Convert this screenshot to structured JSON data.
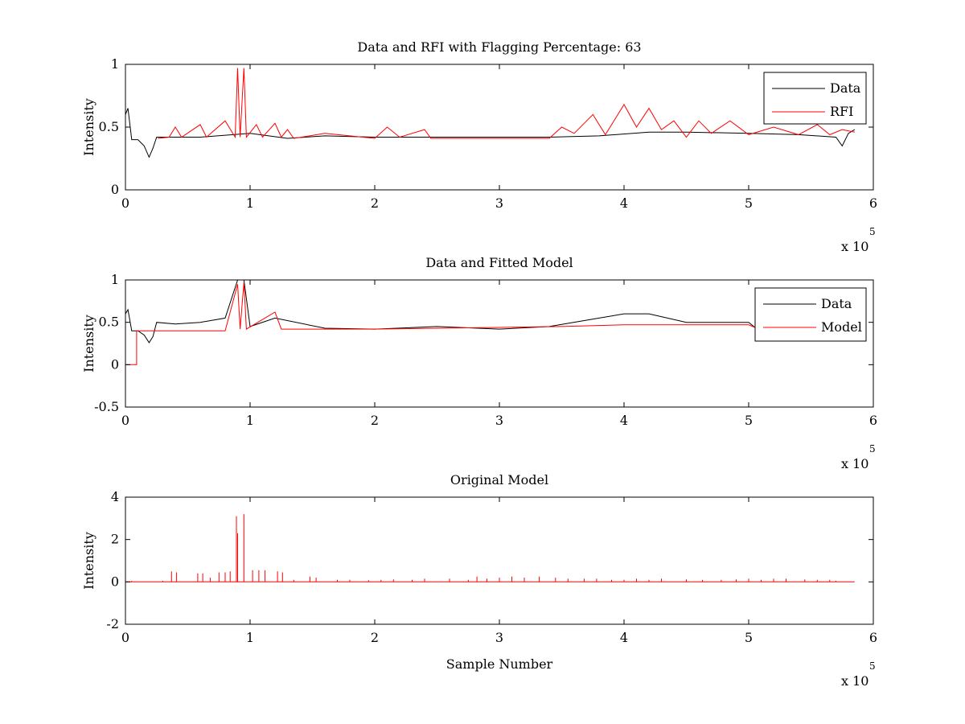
{
  "chart_data": [
    {
      "type": "line",
      "title": "Data and RFI with Flagging Percentage: 63",
      "xlabel": "",
      "ylabel": "Intensity",
      "xlim": [
        0,
        600000
      ],
      "ylim": [
        0,
        1
      ],
      "xticks": [
        0,
        1,
        2,
        3,
        4,
        5,
        6
      ],
      "yticks": [
        0,
        0.5,
        1
      ],
      "x_multiplier": "x 10",
      "x_multiplier_exp": "5",
      "legend": "top-right",
      "series": [
        {
          "name": "Data",
          "color": "#000000",
          "points": [
            [
              0,
              0.6
            ],
            [
              2000,
              0.65
            ],
            [
              5000,
              0.4
            ],
            [
              10000,
              0.4
            ],
            [
              15000,
              0.35
            ],
            [
              19000,
              0.26
            ],
            [
              22000,
              0.33
            ],
            [
              25000,
              0.42
            ],
            [
              60000,
              0.42
            ],
            [
              100000,
              0.45
            ],
            [
              130000,
              0.41
            ],
            [
              160000,
              0.43
            ],
            [
              200000,
              0.42
            ],
            [
              250000,
              0.42
            ],
            [
              300000,
              0.42
            ],
            [
              340000,
              0.42
            ],
            [
              380000,
              0.43
            ],
            [
              420000,
              0.46
            ],
            [
              450000,
              0.46
            ],
            [
              500000,
              0.45
            ],
            [
              540000,
              0.44
            ],
            [
              570000,
              0.42
            ],
            [
              575000,
              0.35
            ],
            [
              580000,
              0.45
            ],
            [
              585000,
              0.48
            ]
          ]
        },
        {
          "name": "RFI",
          "color": "#ff0000",
          "points": [
            [
              26000,
              0.41
            ],
            [
              35000,
              0.42
            ],
            [
              40000,
              0.5
            ],
            [
              45000,
              0.42
            ],
            [
              60000,
              0.52
            ],
            [
              65000,
              0.42
            ],
            [
              80000,
              0.55
            ],
            [
              88000,
              0.42
            ],
            [
              90000,
              0.97
            ],
            [
              92000,
              0.42
            ],
            [
              95000,
              0.97
            ],
            [
              97000,
              0.42
            ],
            [
              105000,
              0.52
            ],
            [
              110000,
              0.42
            ],
            [
              120000,
              0.53
            ],
            [
              125000,
              0.42
            ],
            [
              130000,
              0.48
            ],
            [
              135000,
              0.41
            ],
            [
              160000,
              0.45
            ],
            [
              200000,
              0.41
            ],
            [
              210000,
              0.5
            ],
            [
              220000,
              0.42
            ],
            [
              240000,
              0.48
            ],
            [
              245000,
              0.41
            ],
            [
              340000,
              0.41
            ],
            [
              350000,
              0.5
            ],
            [
              360000,
              0.45
            ],
            [
              375000,
              0.6
            ],
            [
              385000,
              0.44
            ],
            [
              400000,
              0.68
            ],
            [
              410000,
              0.5
            ],
            [
              420000,
              0.65
            ],
            [
              430000,
              0.48
            ],
            [
              440000,
              0.55
            ],
            [
              450000,
              0.42
            ],
            [
              460000,
              0.55
            ],
            [
              470000,
              0.45
            ],
            [
              485000,
              0.55
            ],
            [
              500000,
              0.44
            ],
            [
              520000,
              0.5
            ],
            [
              540000,
              0.44
            ],
            [
              555000,
              0.52
            ],
            [
              565000,
              0.44
            ],
            [
              575000,
              0.48
            ],
            [
              585000,
              0.46
            ]
          ]
        }
      ]
    },
    {
      "type": "line",
      "title": "Data and Fitted Model",
      "xlabel": "",
      "ylabel": "Intensity",
      "xlim": [
        0,
        600000
      ],
      "ylim": [
        -0.5,
        1
      ],
      "xticks": [
        0,
        1,
        2,
        3,
        4,
        5,
        6
      ],
      "yticks": [
        -0.5,
        0,
        0.5,
        1
      ],
      "x_multiplier": "x 10",
      "x_multiplier_exp": "5",
      "legend": "top-right",
      "series": [
        {
          "name": "Data",
          "color": "#000000",
          "points": [
            [
              0,
              0.6
            ],
            [
              2000,
              0.65
            ],
            [
              5000,
              0.4
            ],
            [
              10000,
              0.4
            ],
            [
              15000,
              0.35
            ],
            [
              19000,
              0.26
            ],
            [
              22000,
              0.33
            ],
            [
              25000,
              0.5
            ],
            [
              40000,
              0.48
            ],
            [
              60000,
              0.5
            ],
            [
              80000,
              0.55
            ],
            [
              90000,
              1
            ],
            [
              95000,
              1
            ],
            [
              100000,
              0.45
            ],
            [
              120000,
              0.55
            ],
            [
              160000,
              0.43
            ],
            [
              200000,
              0.42
            ],
            [
              250000,
              0.45
            ],
            [
              300000,
              0.42
            ],
            [
              340000,
              0.45
            ],
            [
              380000,
              0.55
            ],
            [
              400000,
              0.6
            ],
            [
              420000,
              0.6
            ],
            [
              450000,
              0.5
            ],
            [
              500000,
              0.5
            ],
            [
              505000,
              0.44
            ]
          ]
        },
        {
          "name": "Model",
          "color": "#ff0000",
          "points": [
            [
              0,
              0
            ],
            [
              9000,
              0
            ],
            [
              9000,
              0.4
            ],
            [
              80000,
              0.4
            ],
            [
              90000,
              0.95
            ],
            [
              92000,
              0.42
            ],
            [
              95000,
              0.97
            ],
            [
              97000,
              0.42
            ],
            [
              120000,
              0.62
            ],
            [
              125000,
              0.42
            ],
            [
              200000,
              0.42
            ],
            [
              300000,
              0.44
            ],
            [
              350000,
              0.45
            ],
            [
              400000,
              0.47
            ],
            [
              450000,
              0.47
            ],
            [
              500000,
              0.47
            ],
            [
              505000,
              0.44
            ]
          ]
        }
      ]
    },
    {
      "type": "line",
      "title": "Original Model",
      "xlabel": "Sample Number",
      "ylabel": "Intensity",
      "xlim": [
        0,
        600000
      ],
      "ylim": [
        -2,
        4
      ],
      "xticks": [
        0,
        1,
        2,
        3,
        4,
        5,
        6
      ],
      "yticks": [
        -2,
        0,
        2,
        4
      ],
      "x_multiplier": "x 10",
      "x_multiplier_exp": "5",
      "series": [
        {
          "color": "#ff0000",
          "baseline": 0,
          "x_end": 585000,
          "spikes": [
            [
              5000,
              0.05
            ],
            [
              30000,
              0.05
            ],
            [
              37000,
              0.5
            ],
            [
              41000,
              0.45
            ],
            [
              58000,
              0.4
            ],
            [
              62000,
              0.4
            ],
            [
              68000,
              0.2
            ],
            [
              75000,
              0.45
            ],
            [
              80000,
              0.45
            ],
            [
              84000,
              0.5
            ],
            [
              89000,
              3.1
            ],
            [
              90000,
              2.3
            ],
            [
              95000,
              3.2
            ],
            [
              102000,
              0.55
            ],
            [
              107000,
              0.55
            ],
            [
              112000,
              0.55
            ],
            [
              122000,
              0.5
            ],
            [
              126000,
              0.45
            ],
            [
              135000,
              0.1
            ],
            [
              148000,
              0.25
            ],
            [
              153000,
              0.2
            ],
            [
              170000,
              0.1
            ],
            [
              180000,
              0.1
            ],
            [
              195000,
              0.08
            ],
            [
              205000,
              0.1
            ],
            [
              215000,
              0.12
            ],
            [
              230000,
              0.1
            ],
            [
              240000,
              0.15
            ],
            [
              260000,
              0.15
            ],
            [
              275000,
              0.1
            ],
            [
              282000,
              0.25
            ],
            [
              290000,
              0.15
            ],
            [
              300000,
              0.2
            ],
            [
              310000,
              0.25
            ],
            [
              320000,
              0.2
            ],
            [
              332000,
              0.25
            ],
            [
              345000,
              0.2
            ],
            [
              355000,
              0.15
            ],
            [
              368000,
              0.15
            ],
            [
              378000,
              0.15
            ],
            [
              390000,
              0.1
            ],
            [
              400000,
              0.1
            ],
            [
              410000,
              0.15
            ],
            [
              420000,
              0.1
            ],
            [
              430000,
              0.15
            ],
            [
              450000,
              0.12
            ],
            [
              463000,
              0.1
            ],
            [
              478000,
              0.1
            ],
            [
              490000,
              0.12
            ],
            [
              500000,
              0.15
            ],
            [
              510000,
              0.1
            ],
            [
              520000,
              0.15
            ],
            [
              530000,
              0.15
            ],
            [
              545000,
              0.12
            ],
            [
              555000,
              0.1
            ],
            [
              565000,
              0.1
            ],
            [
              570000,
              0.05
            ]
          ]
        }
      ]
    }
  ]
}
